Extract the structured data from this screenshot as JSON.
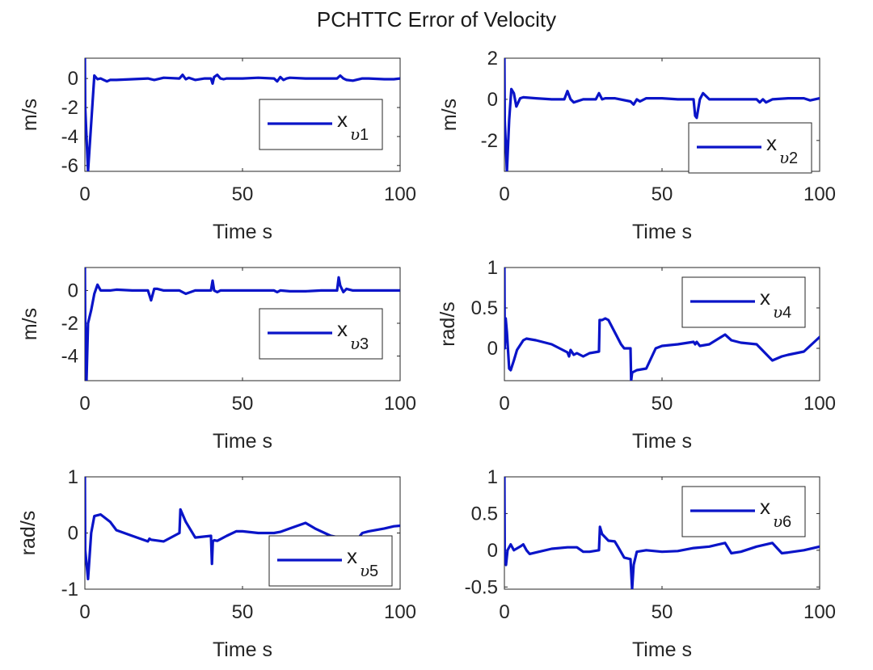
{
  "chart_data": {
    "type": "line",
    "title": "PCHTTC Error of Velocity",
    "line_color": "#0a14c8",
    "subplots": [
      {
        "name": "x_v1",
        "legend": {
          "base": "x",
          "sub_italic": "υ",
          "sub_num": "1",
          "placement": "center-right"
        },
        "xlabel": "Time s",
        "ylabel": "m/s",
        "xlim": [
          0,
          100
        ],
        "ylim": [
          -6.4,
          1.4
        ],
        "xticks": [
          0,
          50,
          100
        ],
        "xtick_labels": [
          "0",
          "50",
          "100"
        ],
        "yticks": [
          -6,
          -4,
          -2,
          0
        ],
        "ytick_labels": [
          "-6",
          "-4",
          "-2",
          "0"
        ],
        "x": [
          0,
          0.1,
          1,
          3,
          4,
          5,
          6,
          7,
          8,
          10,
          15,
          20,
          22,
          25,
          30,
          31,
          32,
          33,
          35,
          38,
          40,
          40.5,
          41,
          42,
          43,
          44,
          45,
          50,
          55,
          60,
          61,
          62,
          63,
          64,
          65,
          70,
          75,
          80,
          81,
          82,
          83,
          85,
          88,
          90,
          95,
          98,
          100
        ],
        "y": [
          1.4,
          -2,
          -6.4,
          0.2,
          -0.05,
          0.0,
          -0.1,
          -0.2,
          -0.1,
          -0.1,
          -0.05,
          0.0,
          -0.1,
          0.05,
          0.0,
          0.25,
          -0.05,
          0.05,
          -0.1,
          0.0,
          0.0,
          -0.35,
          0.1,
          0.25,
          0.0,
          -0.05,
          0.0,
          0.0,
          0.05,
          0.0,
          -0.2,
          0.1,
          -0.1,
          0.0,
          0.05,
          0.0,
          0.0,
          0.0,
          0.2,
          0.0,
          -0.1,
          -0.15,
          0.0,
          0.0,
          -0.05,
          -0.05,
          0.0
        ]
      },
      {
        "name": "x_v2",
        "legend": {
          "base": "x",
          "sub_italic": "υ",
          "sub_num": "2",
          "placement": "bottom-right"
        },
        "xlabel": "Time s",
        "ylabel": "m/s",
        "xlim": [
          0,
          100
        ],
        "ylim": [
          -3.5,
          2
        ],
        "xticks": [
          0,
          50,
          100
        ],
        "xtick_labels": [
          "0",
          "50",
          "100"
        ],
        "yticks": [
          -2,
          0,
          2
        ],
        "ytick_labels": [
          "-2",
          "0",
          "2"
        ],
        "x": [
          0,
          0.1,
          0.8,
          1.5,
          2.2,
          3,
          3.8,
          5,
          6,
          10,
          15,
          19,
          20,
          21,
          22,
          25,
          29,
          30,
          31,
          32,
          35,
          40,
          41,
          42,
          43,
          45,
          50,
          55,
          58,
          60,
          60.5,
          61,
          62,
          63,
          65,
          70,
          75,
          80,
          81,
          82,
          83,
          85,
          90,
          95,
          97,
          100
        ],
        "y": [
          2,
          -1,
          -3.5,
          -1,
          0.5,
          0.3,
          -0.35,
          0.05,
          0.1,
          0.05,
          0.0,
          0.0,
          0.4,
          0.0,
          -0.15,
          0.0,
          0.0,
          0.3,
          0.0,
          0.05,
          0.05,
          -0.1,
          -0.25,
          0.0,
          -0.1,
          0.05,
          0.05,
          0.0,
          0.0,
          0.0,
          -0.8,
          -0.9,
          0.0,
          0.3,
          0.0,
          0.0,
          0.0,
          0.0,
          -0.15,
          0.0,
          -0.15,
          0.0,
          0.05,
          0.05,
          -0.05,
          0.05
        ]
      },
      {
        "name": "x_v3",
        "legend": {
          "base": "x",
          "sub_italic": "υ",
          "sub_num": "3",
          "placement": "center-right"
        },
        "xlabel": "Time s",
        "ylabel": "m/s",
        "xlim": [
          0,
          100
        ],
        "ylim": [
          -5.5,
          1.4
        ],
        "xticks": [
          0,
          50,
          100
        ],
        "xtick_labels": [
          "0",
          "50",
          "100"
        ],
        "yticks": [
          -4,
          -2,
          0
        ],
        "ytick_labels": [
          "-4",
          "-2",
          "0"
        ],
        "x": [
          0,
          0.1,
          0.5,
          1,
          2,
          3,
          4,
          5,
          8,
          10,
          15,
          20,
          21,
          22,
          23,
          25,
          30,
          32,
          35,
          40,
          40.5,
          41,
          42,
          43,
          45,
          50,
          55,
          60,
          61,
          62,
          65,
          70,
          75,
          80,
          80.5,
          81,
          82,
          83,
          85,
          90,
          95,
          100
        ],
        "y": [
          1.4,
          -2,
          -5.5,
          -2,
          -1.2,
          -0.2,
          0.35,
          0.0,
          0.0,
          0.05,
          0.0,
          0.0,
          -0.6,
          0.1,
          0.1,
          0.0,
          0.0,
          -0.2,
          0.0,
          0.0,
          0.6,
          0.0,
          -0.1,
          0.0,
          0.0,
          0.0,
          0.0,
          0.0,
          -0.1,
          0.0,
          -0.05,
          -0.05,
          0.0,
          0.0,
          0.8,
          0.3,
          -0.1,
          0.1,
          0.0,
          0.0,
          0.0,
          0.0
        ]
      },
      {
        "name": "x_v4",
        "legend": {
          "base": "x",
          "sub_italic": "υ",
          "sub_num": "4",
          "placement": "top-right"
        },
        "xlabel": "Time s",
        "ylabel": "rad/s",
        "xlim": [
          0,
          100
        ],
        "ylim": [
          -0.4,
          1
        ],
        "xticks": [
          0,
          50,
          100
        ],
        "xtick_labels": [
          "0",
          "50",
          "100"
        ],
        "yticks": [
          0,
          0.5,
          1
        ],
        "ytick_labels": [
          "0",
          "0.5",
          "1"
        ],
        "x": [
          0,
          0.1,
          0.4,
          0.8,
          1.5,
          2,
          3,
          4,
          6,
          7,
          10,
          15,
          20,
          20.5,
          21,
          22,
          23,
          25,
          27,
          30,
          30.2,
          31,
          32,
          33,
          35,
          37,
          38,
          39,
          40,
          40.2,
          40.5,
          42,
          45,
          48,
          50,
          55,
          60,
          60.5,
          61,
          62,
          65,
          70,
          72,
          75,
          80,
          85,
          88,
          90,
          95,
          100
        ],
        "y": [
          1,
          0.0,
          0.37,
          0.2,
          -0.25,
          -0.27,
          -0.15,
          -0.02,
          0.1,
          0.12,
          0.1,
          0.05,
          -0.05,
          -0.1,
          -0.02,
          -0.08,
          -0.06,
          -0.1,
          -0.06,
          -0.04,
          0.35,
          0.35,
          0.37,
          0.35,
          0.2,
          0.05,
          0.0,
          0.0,
          0.0,
          -0.4,
          -0.3,
          -0.27,
          -0.25,
          0.0,
          0.03,
          0.05,
          0.08,
          0.05,
          0.08,
          0.03,
          0.05,
          0.17,
          0.1,
          0.07,
          0.05,
          -0.15,
          -0.1,
          -0.08,
          -0.04,
          0.14
        ]
      },
      {
        "name": "x_v5",
        "legend": {
          "base": "x",
          "sub_italic": "υ",
          "sub_num": "5",
          "placement": "bottom-right"
        },
        "xlabel": "Time s",
        "ylabel": "rad/s",
        "xlim": [
          0,
          100
        ],
        "ylim": [
          -1,
          1
        ],
        "xticks": [
          0,
          50,
          100
        ],
        "xtick_labels": [
          "0",
          "50",
          "100"
        ],
        "yticks": [
          -1,
          0,
          1
        ],
        "ytick_labels": [
          "-1",
          "0",
          "1"
        ],
        "x": [
          0,
          0.1,
          1,
          2,
          3,
          5,
          8,
          10,
          15,
          20,
          20.5,
          21,
          25,
          30,
          30.3,
          32,
          35,
          40,
          40.3,
          40.6,
          41,
          42,
          45,
          48,
          50,
          55,
          60,
          62,
          65,
          70,
          73,
          78,
          80,
          87,
          88,
          90,
          95,
          98,
          100
        ],
        "y": [
          1,
          -0.3,
          -0.82,
          0.0,
          0.3,
          0.33,
          0.2,
          0.05,
          -0.05,
          -0.15,
          -0.1,
          -0.12,
          -0.15,
          0.0,
          0.42,
          0.2,
          -0.08,
          -0.05,
          -0.55,
          -0.15,
          -0.13,
          -0.14,
          -0.05,
          0.03,
          0.03,
          0.0,
          0.0,
          0.02,
          0.08,
          0.18,
          0.08,
          -0.05,
          -0.07,
          -0.07,
          0.0,
          0.03,
          0.08,
          0.12,
          0.13
        ]
      },
      {
        "name": "x_v6",
        "legend": {
          "base": "x",
          "sub_italic": "υ",
          "sub_num": "6",
          "placement": "top-right"
        },
        "xlabel": "Time s",
        "ylabel": "",
        "xlim": [
          0,
          100
        ],
        "ylim": [
          -0.53,
          1
        ],
        "xticks": [
          0,
          50,
          100
        ],
        "xtick_labels": [
          "0",
          "50",
          "100"
        ],
        "yticks": [
          -0.5,
          0,
          0.5,
          1
        ],
        "ytick_labels": [
          "-0.5",
          "0",
          "0.5",
          "1"
        ],
        "x": [
          0,
          0.1,
          0.5,
          1,
          2,
          3,
          5,
          6,
          7,
          8,
          10,
          15,
          20,
          23,
          25,
          27,
          30,
          30.3,
          31,
          33,
          35,
          36,
          38,
          40,
          40.5,
          41,
          42,
          45,
          50,
          55,
          60,
          65,
          70,
          72,
          75,
          80,
          85,
          88,
          90,
          95,
          100
        ],
        "y": [
          1,
          -0.1,
          -0.2,
          0.0,
          0.08,
          0.0,
          0.05,
          0.08,
          0.0,
          -0.05,
          -0.03,
          0.02,
          0.04,
          0.04,
          -0.02,
          -0.02,
          0.0,
          0.32,
          0.22,
          0.13,
          0.12,
          0.05,
          -0.1,
          -0.12,
          -0.53,
          -0.2,
          -0.02,
          0.0,
          -0.02,
          -0.01,
          0.03,
          0.05,
          0.1,
          -0.04,
          -0.02,
          0.05,
          0.1,
          -0.04,
          -0.03,
          0.0,
          0.05
        ]
      }
    ]
  }
}
